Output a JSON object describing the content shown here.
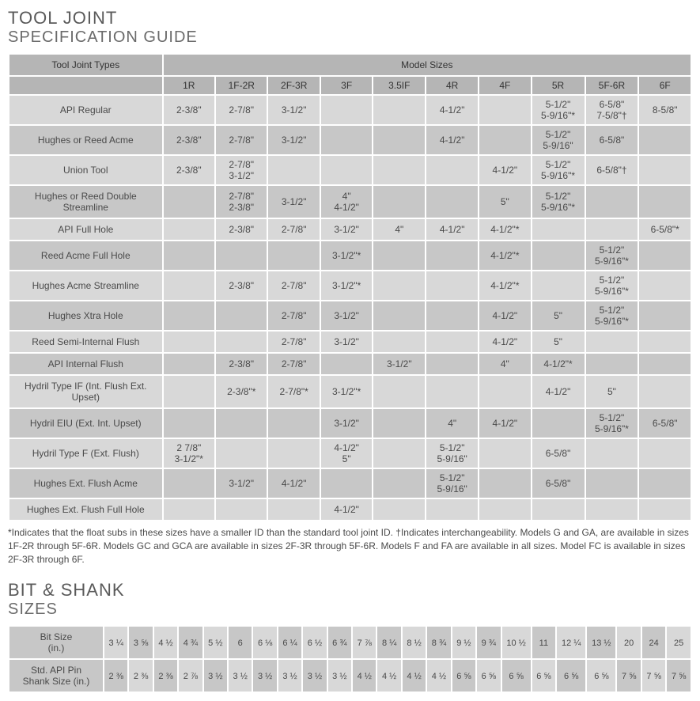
{
  "tool_joint": {
    "title_main": "TOOL JOINT",
    "title_sub": "SPECIFICATION GUIDE",
    "header_left": "Tool Joint Types",
    "header_right": "Model Sizes",
    "sizes": [
      "1R",
      "1F-2R",
      "2F-3R",
      "3F",
      "3.5IF",
      "4R",
      "4F",
      "5R",
      "5F-6R",
      "6F"
    ],
    "rows": [
      {
        "name": "API Regular",
        "cells": [
          "2-3/8\"",
          "2-7/8\"",
          "3-1/2\"",
          "",
          "",
          "4-1/2\"",
          "",
          "5-1/2\"\n5-9/16\"*",
          "6-5/8\"\n7-5/8\"†",
          "8-5/8\""
        ]
      },
      {
        "name": "Hughes or Reed Acme",
        "cells": [
          "2-3/8\"",
          "2-7/8\"",
          "3-1/2\"",
          "",
          "",
          "4-1/2\"",
          "",
          "5-1/2\"\n5-9/16\"",
          "6-5/8\"",
          ""
        ]
      },
      {
        "name": "Union Tool",
        "cells": [
          "2-3/8\"",
          "2-7/8\"\n3-1/2\"",
          "",
          "",
          "",
          "",
          "4-1/2\"",
          "5-1/2\"\n5-9/16\"*",
          "6-5/8\"†",
          ""
        ]
      },
      {
        "name": "Hughes or Reed Double Streamline",
        "cells": [
          "",
          "2-7/8\"\n2-3/8\"",
          "3-1/2\"",
          "4\"\n4-1/2\"",
          "",
          "",
          "5\"",
          "5-1/2\"\n5-9/16\"*",
          "",
          ""
        ]
      },
      {
        "name": "API Full Hole",
        "cells": [
          "",
          "2-3/8\"",
          "2-7/8\"",
          "3-1/2\"",
          "4\"",
          "4-1/2\"",
          "4-1/2\"*",
          "",
          "",
          "6-5/8\"*"
        ]
      },
      {
        "name": "Reed Acme Full Hole",
        "cells": [
          "",
          "",
          "",
          "3-1/2\"*",
          "",
          "",
          "4-1/2\"*",
          "",
          "5-1/2\"\n5-9/16\"*",
          ""
        ]
      },
      {
        "name": "Hughes Acme Streamline",
        "cells": [
          "",
          "2-3/8\"",
          "2-7/8\"",
          "3-1/2\"*",
          "",
          "",
          "4-1/2\"*",
          "",
          "5-1/2\"\n5-9/16\"*",
          ""
        ]
      },
      {
        "name": "Hughes Xtra Hole",
        "cells": [
          "",
          "",
          "2-7/8\"",
          "3-1/2\"",
          "",
          "",
          "4-1/2\"",
          "5\"",
          "5-1/2\"\n5-9/16\"*",
          ""
        ]
      },
      {
        "name": "Reed Semi-Internal Flush",
        "cells": [
          "",
          "",
          "2-7/8\"",
          "3-1/2\"",
          "",
          "",
          "4-1/2\"",
          "5\"",
          "",
          ""
        ]
      },
      {
        "name": "API Internal Flush",
        "cells": [
          "",
          "2-3/8\"",
          "2-7/8\"",
          "",
          "3-1/2\"",
          "",
          "4\"",
          "4-1/2\"*",
          "",
          ""
        ]
      },
      {
        "name": "Hydril Type IF (Int. Flush Ext. Upset)",
        "cells": [
          "",
          "2-3/8\"*",
          "2-7/8\"*",
          "3-1/2\"*",
          "",
          "",
          "",
          "4-1/2\"",
          "5\"",
          ""
        ]
      },
      {
        "name": "Hydril EIU (Ext. Int. Upset)",
        "cells": [
          "",
          "",
          "",
          "3-1/2\"",
          "",
          "4\"",
          "4-1/2\"",
          "",
          "5-1/2\"\n5-9/16\"*",
          "6-5/8\""
        ]
      },
      {
        "name": "Hydril Type F (Ext. Flush)",
        "cells": [
          "2 7/8\"\n3-1/2\"*",
          "",
          "",
          "4-1/2\"\n5\"",
          "",
          "5-1/2\"\n5-9/16\"",
          "",
          "6-5/8\"",
          "",
          ""
        ]
      },
      {
        "name": "Hughes Ext. Flush Acme",
        "cells": [
          "",
          "3-1/2\"",
          "4-1/2\"",
          "",
          "",
          "5-1/2\"\n5-9/16\"",
          "",
          "6-5/8\"",
          "",
          ""
        ]
      },
      {
        "name": "Hughes Ext. Flush Full Hole",
        "cells": [
          "",
          "",
          "",
          "4-1/2\"",
          "",
          "",
          "",
          "",
          "",
          ""
        ]
      }
    ],
    "footnote": "*Indicates that the float subs in these sizes have a smaller ID than the standard tool joint ID. †Indicates interchangeability. Models G and GA, are available in sizes 1F-2R through 5F-6R. Models GC and GCA are available in sizes 2F-3R through 5F-6R. Models F and FA are available in all sizes. Model FC is available in sizes 2F-3R through 6F."
  },
  "bit_shank": {
    "title_main": "BIT & SHANK",
    "title_sub": "SIZES",
    "row_labels": [
      "Bit Size\n(in.)",
      "Std. API Pin\nShank Size (in.)"
    ],
    "bit_sizes": [
      "3 ¼",
      "3 ⅝",
      "4 ½",
      "4 ¾",
      "5 ½",
      "6",
      "6 ⅛",
      "6 ¼",
      "6 ½",
      "6 ¾",
      "7 ⅞",
      "8 ¼",
      "8 ½",
      "8 ¾",
      "9 ½",
      "9 ¾",
      "10 ½",
      "11",
      "12 ¼",
      "13 ½",
      "20",
      "24",
      "25"
    ],
    "shank_sizes": [
      "2 ⅜",
      "2 ⅜",
      "2 ⅜",
      "2 ⅞",
      "3 ½",
      "3 ½",
      "3 ½",
      "3 ½",
      "3 ½",
      "3 ½",
      "4 ½",
      "4 ½",
      "4 ½",
      "4 ½",
      "6 ⅝",
      "6 ⅝",
      "6 ⅝",
      "6 ⅝",
      "6 ⅝",
      "6 ⅝",
      "7 ⅝",
      "7 ⅝",
      "7 ⅝"
    ]
  },
  "colors": {
    "header_bg": "#b5b5b5",
    "row_odd": "#d8d8d8",
    "row_even": "#c7c7c7",
    "border": "#ffffff",
    "text": "#4a4a4a"
  }
}
